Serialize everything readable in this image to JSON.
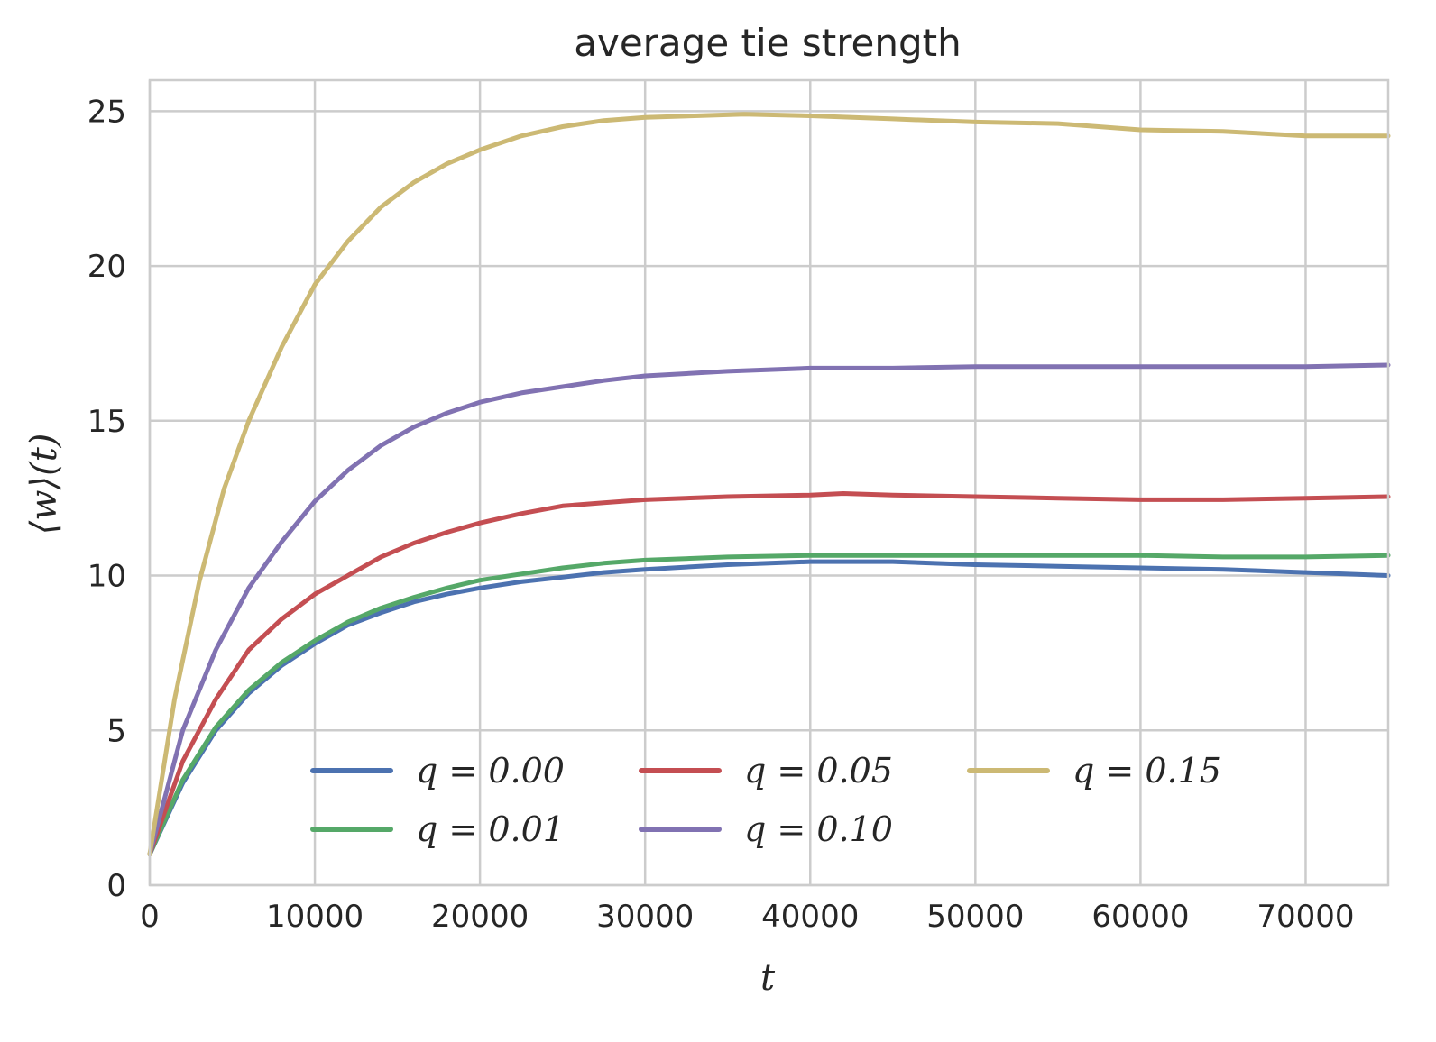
{
  "chart_data": {
    "type": "line",
    "title": "average tie strength",
    "xlabel": "t",
    "ylabel": "⟨w⟩(t)",
    "xlim": [
      0,
      75000
    ],
    "ylim": [
      0,
      26
    ],
    "xticks": [
      0,
      10000,
      20000,
      30000,
      40000,
      50000,
      60000,
      70000
    ],
    "yticks": [
      0,
      5,
      10,
      15,
      20,
      25
    ],
    "grid": true,
    "legend_position": "lower-center",
    "legend_columns": 3,
    "series": [
      {
        "name": "q = 0.00",
        "color": "#4c72b0",
        "x": [
          0,
          2000,
          4000,
          6000,
          8000,
          10000,
          12000,
          14000,
          16000,
          18000,
          20000,
          22500,
          25000,
          27500,
          30000,
          35000,
          40000,
          45000,
          50000,
          55000,
          60000,
          65000,
          70000,
          75000
        ],
        "y": [
          1.0,
          3.3,
          5.0,
          6.2,
          7.1,
          7.8,
          8.4,
          8.8,
          9.15,
          9.4,
          9.6,
          9.8,
          9.95,
          10.1,
          10.2,
          10.35,
          10.45,
          10.45,
          10.35,
          10.3,
          10.25,
          10.2,
          10.1,
          10.0
        ]
      },
      {
        "name": "q = 0.01",
        "color": "#55a868",
        "x": [
          0,
          2000,
          4000,
          6000,
          8000,
          10000,
          12000,
          14000,
          16000,
          18000,
          20000,
          22500,
          25000,
          27500,
          30000,
          35000,
          40000,
          45000,
          50000,
          55000,
          60000,
          65000,
          70000,
          75000
        ],
        "y": [
          1.0,
          3.4,
          5.1,
          6.3,
          7.2,
          7.9,
          8.5,
          8.95,
          9.3,
          9.6,
          9.85,
          10.05,
          10.25,
          10.4,
          10.5,
          10.6,
          10.65,
          10.65,
          10.65,
          10.65,
          10.65,
          10.6,
          10.6,
          10.65
        ]
      },
      {
        "name": "q = 0.05",
        "color": "#c44e52",
        "x": [
          0,
          2000,
          4000,
          6000,
          8000,
          10000,
          12000,
          14000,
          16000,
          18000,
          20000,
          22500,
          25000,
          27500,
          30000,
          35000,
          40000,
          42000,
          45000,
          50000,
          55000,
          60000,
          65000,
          70000,
          75000
        ],
        "y": [
          1.0,
          4.0,
          6.0,
          7.6,
          8.6,
          9.4,
          10.0,
          10.6,
          11.05,
          11.4,
          11.7,
          12.0,
          12.25,
          12.35,
          12.45,
          12.55,
          12.6,
          12.65,
          12.6,
          12.55,
          12.5,
          12.45,
          12.45,
          12.5,
          12.55
        ]
      },
      {
        "name": "q = 0.10",
        "color": "#8172b2",
        "x": [
          0,
          2000,
          4000,
          6000,
          8000,
          10000,
          12000,
          14000,
          16000,
          18000,
          20000,
          22500,
          25000,
          27500,
          30000,
          35000,
          40000,
          45000,
          50000,
          55000,
          60000,
          65000,
          70000,
          75000
        ],
        "y": [
          1.0,
          5.0,
          7.6,
          9.6,
          11.1,
          12.4,
          13.4,
          14.2,
          14.8,
          15.25,
          15.6,
          15.9,
          16.1,
          16.3,
          16.45,
          16.6,
          16.7,
          16.7,
          16.75,
          16.75,
          16.75,
          16.75,
          16.75,
          16.8
        ]
      },
      {
        "name": "q = 0.15",
        "color": "#ccb974",
        "x": [
          0,
          1500,
          3000,
          4500,
          6000,
          8000,
          10000,
          12000,
          14000,
          16000,
          18000,
          20000,
          22500,
          25000,
          27500,
          30000,
          33000,
          36000,
          40000,
          45000,
          50000,
          55000,
          60000,
          65000,
          70000,
          75000
        ],
        "y": [
          1.0,
          6.0,
          9.8,
          12.8,
          15.0,
          17.4,
          19.4,
          20.8,
          21.9,
          22.7,
          23.3,
          23.75,
          24.2,
          24.5,
          24.7,
          24.8,
          24.85,
          24.9,
          24.85,
          24.75,
          24.65,
          24.6,
          24.4,
          24.35,
          24.2,
          24.2
        ]
      }
    ]
  }
}
